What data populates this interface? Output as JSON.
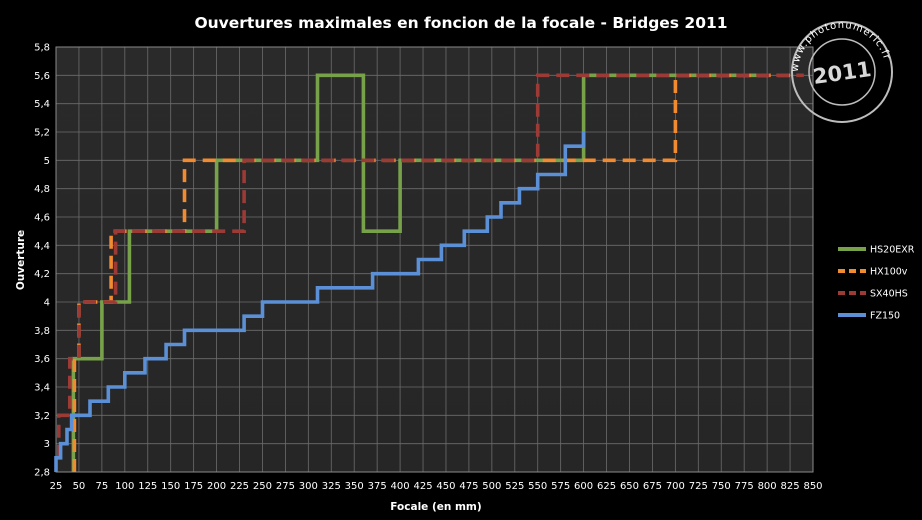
{
  "watermark": {
    "year": "2011",
    "ring_text": "www.photonumeric.fr"
  },
  "chart_data": {
    "type": "line",
    "title": "Ouvertures maximales en foncion de la focale - Bridges 2011",
    "xlabel": "Focale (en mm)",
    "ylabel": "Ouverture",
    "xlim": [
      25,
      850
    ],
    "ylim": [
      2.8,
      5.8
    ],
    "x_ticks": [
      "25",
      "50",
      "75",
      "100",
      "125",
      "150",
      "175",
      "200",
      "225",
      "250",
      "275",
      "300",
      "325",
      "350",
      "375",
      "400",
      "425",
      "450",
      "475",
      "500",
      "525",
      "550",
      "575",
      "600",
      "625",
      "650",
      "675",
      "700",
      "725",
      "750",
      "775",
      "800",
      "825",
      "850"
    ],
    "y_ticks": [
      "2,8",
      "3",
      "3,2",
      "3,4",
      "3,6",
      "3,8",
      "4",
      "4,2",
      "4,4",
      "4,6",
      "4,8",
      "5",
      "5,2",
      "5,4",
      "5,6",
      "5,8"
    ],
    "grid": true,
    "legend_position": "right",
    "series": [
      {
        "name": "HS20EXR",
        "color": "#77a24a",
        "dash": "solid",
        "points": [
          [
            44,
            2.8
          ],
          [
            44,
            3.6
          ],
          [
            75,
            3.6
          ],
          [
            75,
            4.0
          ],
          [
            105,
            4.0
          ],
          [
            105,
            4.5
          ],
          [
            200,
            4.5
          ],
          [
            200,
            5.0
          ],
          [
            310,
            5.0
          ],
          [
            310,
            5.6
          ],
          [
            360,
            5.6
          ],
          [
            360,
            4.5
          ],
          [
            400,
            4.5
          ],
          [
            400,
            5.0
          ],
          [
            600,
            5.0
          ],
          [
            600,
            5.6
          ],
          [
            800,
            5.6
          ]
        ]
      },
      {
        "name": "HX100v",
        "color": "#f28a30",
        "dash": "dashed",
        "points": [
          [
            45,
            2.8
          ],
          [
            45,
            3.6
          ],
          [
            50,
            3.6
          ],
          [
            50,
            4.0
          ],
          [
            85,
            4.0
          ],
          [
            85,
            4.5
          ],
          [
            165,
            4.5
          ],
          [
            165,
            5.0
          ],
          [
            700,
            5.0
          ],
          [
            700,
            5.6
          ],
          [
            825,
            5.6
          ]
        ]
      },
      {
        "name": "SX40HS",
        "color": "#9c3a36",
        "dash": "dashed",
        "points": [
          [
            28,
            2.9
          ],
          [
            28,
            3.2
          ],
          [
            40,
            3.2
          ],
          [
            40,
            3.6
          ],
          [
            50,
            3.6
          ],
          [
            50,
            4.0
          ],
          [
            90,
            4.0
          ],
          [
            90,
            4.5
          ],
          [
            230,
            4.5
          ],
          [
            230,
            5.0
          ],
          [
            550,
            5.0
          ],
          [
            550,
            5.6
          ],
          [
            840,
            5.6
          ]
        ]
      },
      {
        "name": "FZ150",
        "color": "#5b8fd6",
        "dash": "solid",
        "points": [
          [
            25,
            2.8
          ],
          [
            25,
            2.9
          ],
          [
            30,
            2.9
          ],
          [
            30,
            3.0
          ],
          [
            37,
            3.0
          ],
          [
            37,
            3.1
          ],
          [
            42,
            3.1
          ],
          [
            42,
            3.2
          ],
          [
            62,
            3.2
          ],
          [
            62,
            3.3
          ],
          [
            82,
            3.3
          ],
          [
            82,
            3.4
          ],
          [
            100,
            3.4
          ],
          [
            100,
            3.5
          ],
          [
            122,
            3.5
          ],
          [
            122,
            3.6
          ],
          [
            145,
            3.6
          ],
          [
            145,
            3.7
          ],
          [
            165,
            3.7
          ],
          [
            165,
            3.8
          ],
          [
            230,
            3.8
          ],
          [
            230,
            3.9
          ],
          [
            250,
            3.9
          ],
          [
            250,
            4.0
          ],
          [
            310,
            4.0
          ],
          [
            310,
            4.1
          ],
          [
            370,
            4.1
          ],
          [
            370,
            4.2
          ],
          [
            420,
            4.2
          ],
          [
            420,
            4.3
          ],
          [
            445,
            4.3
          ],
          [
            445,
            4.4
          ],
          [
            470,
            4.4
          ],
          [
            470,
            4.5
          ],
          [
            495,
            4.5
          ],
          [
            495,
            4.6
          ],
          [
            510,
            4.6
          ],
          [
            510,
            4.7
          ],
          [
            530,
            4.7
          ],
          [
            530,
            4.8
          ],
          [
            550,
            4.8
          ],
          [
            550,
            4.9
          ],
          [
            580,
            4.9
          ],
          [
            580,
            5.1
          ],
          [
            600,
            5.1
          ],
          [
            600,
            5.2
          ]
        ]
      }
    ]
  }
}
